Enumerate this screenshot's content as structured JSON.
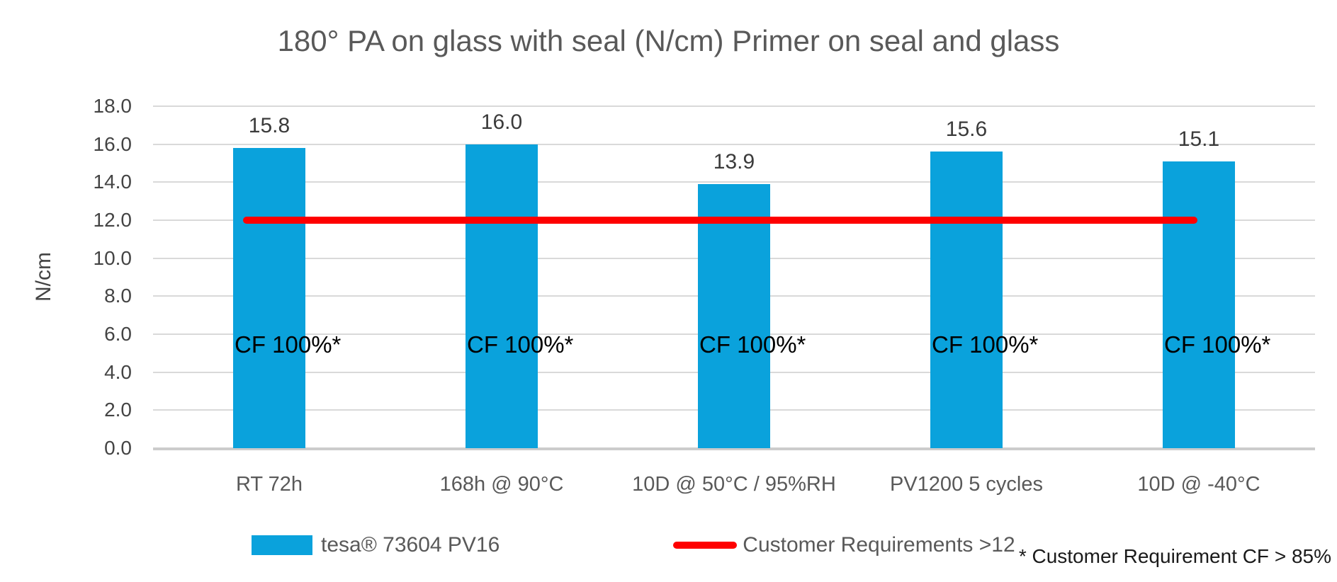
{
  "title": "180° PA on glass with seal (N/cm) Primer on seal and glass",
  "footnote": "* Customer Requirement CF > 85%",
  "colors": {
    "bar": "#0aa2dc",
    "reference_line": "#fe0000",
    "title_text": "#595959",
    "axis_text": "#444444",
    "gridline": "#d9d9d9"
  },
  "legend": [
    {
      "swatch": "bar",
      "label": "tesa® 73604 PV16"
    },
    {
      "swatch": "line",
      "label": "Customer Requirements >12"
    }
  ],
  "chart_data": {
    "type": "bar",
    "title": "180° PA on glass with seal (N/cm) Primer on seal and glass",
    "xlabel": "",
    "ylabel": "N/cm",
    "ylim": [
      0,
      18
    ],
    "grid": true,
    "legend_position": "bottom",
    "categories": [
      "RT 72h",
      "168h @ 90°C",
      "10D @ 50°C / 95%RH",
      "PV1200 5 cycles",
      "10D @ -40°C"
    ],
    "series": [
      {
        "name": "tesa® 73604 PV16",
        "values": [
          15.8,
          16.0,
          13.9,
          15.6,
          15.1
        ]
      }
    ],
    "bar_value_labels": [
      "15.8",
      "16.0",
      "13.9",
      "15.6",
      "15.1"
    ],
    "bar_annotations": [
      "CF 100%*",
      "CF 100%*",
      "CF 100%*",
      "CF 100%*",
      "CF 100%*"
    ],
    "yticks": [
      {
        "v": 0,
        "label": "0.0"
      },
      {
        "v": 2,
        "label": "2.0"
      },
      {
        "v": 4,
        "label": "4.0"
      },
      {
        "v": 6,
        "label": "6.0"
      },
      {
        "v": 8,
        "label": "8.0"
      },
      {
        "v": 10,
        "label": "10.0"
      },
      {
        "v": 12,
        "label": "12.0"
      },
      {
        "v": 14,
        "label": "14.0"
      },
      {
        "v": 16,
        "label": "16.0"
      },
      {
        "v": 18,
        "label": "18.0"
      }
    ],
    "reference_line": {
      "value": 12,
      "label": "Customer Requirements >12"
    }
  }
}
